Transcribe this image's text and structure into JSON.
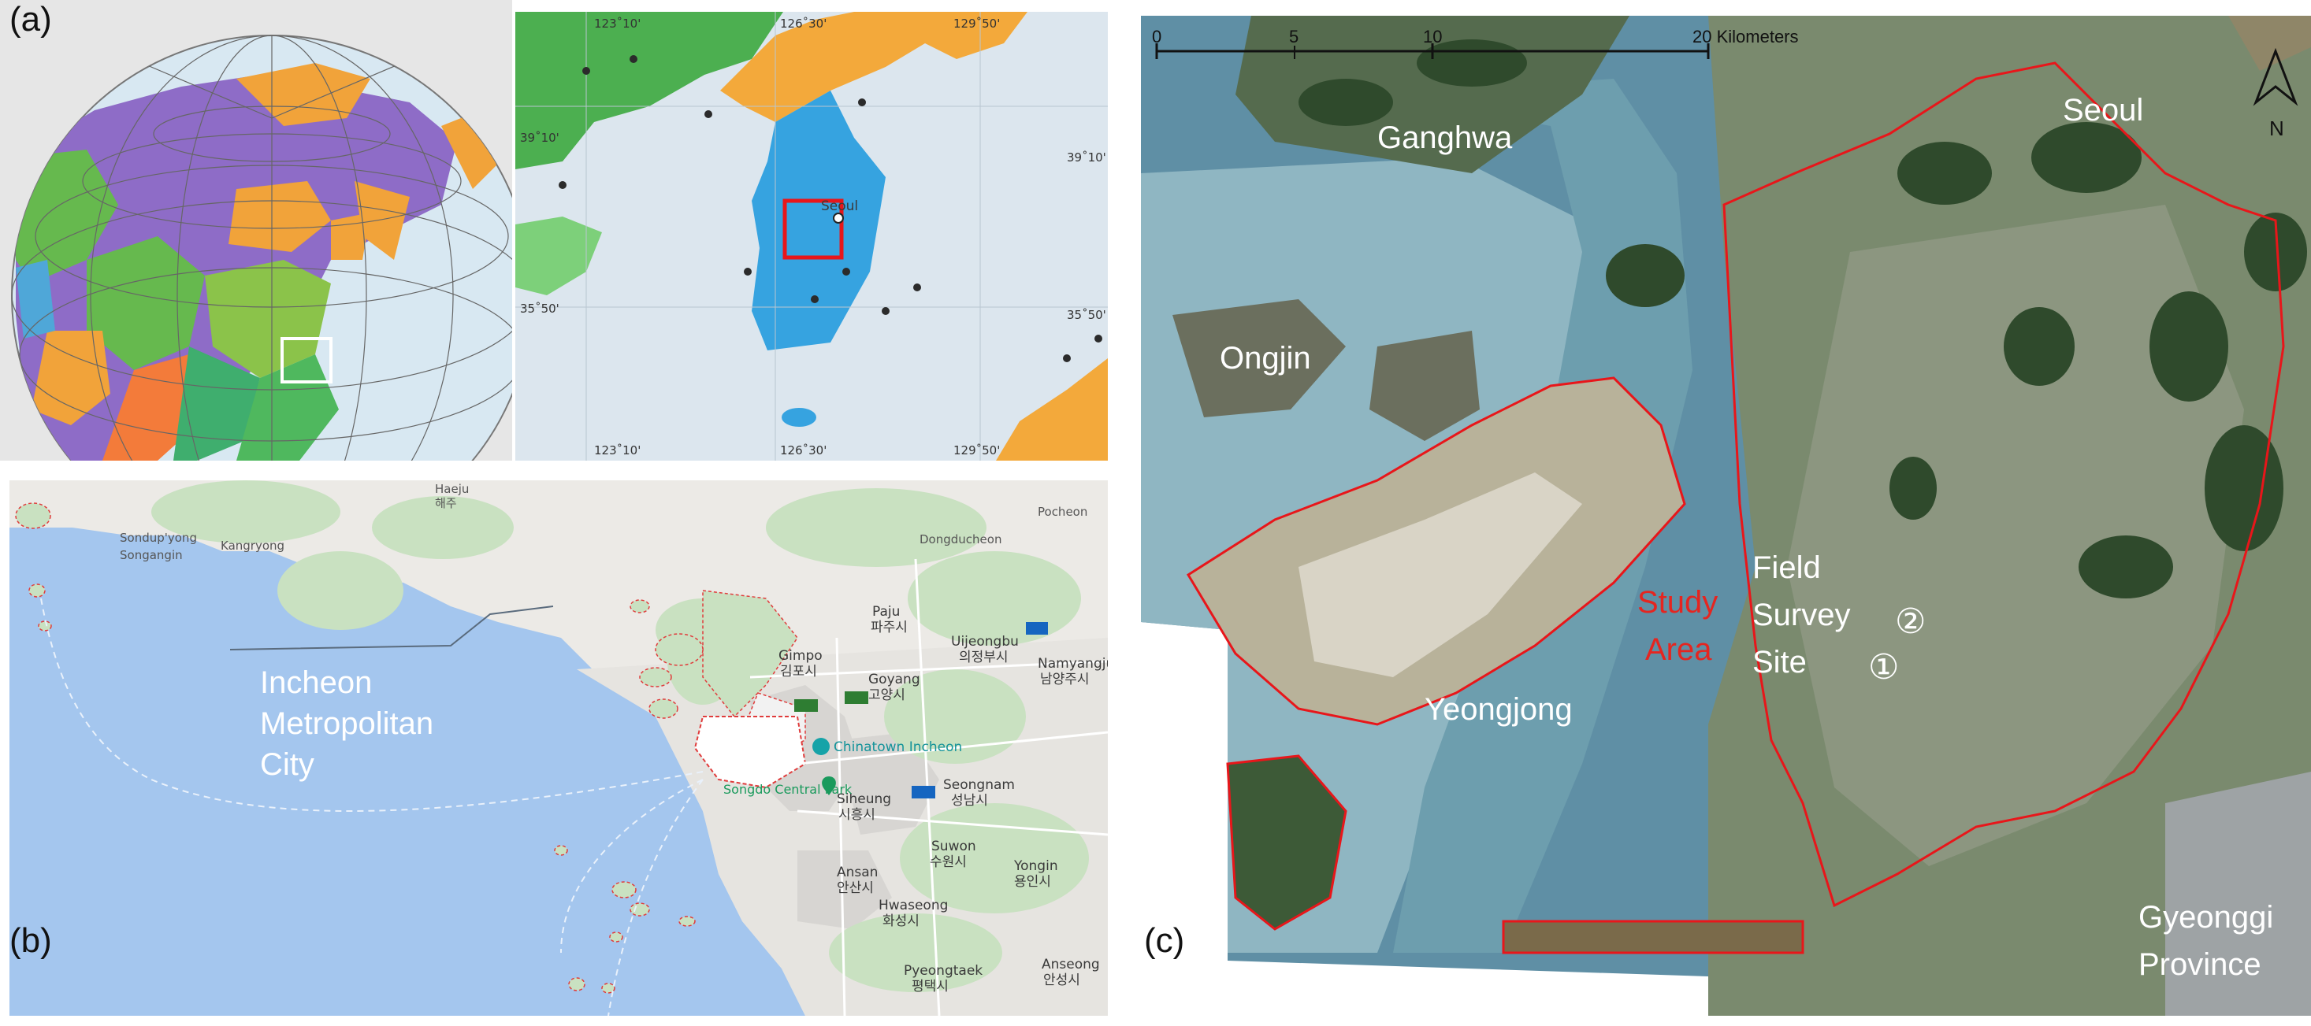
{
  "panels": {
    "a": {
      "label": "(a)"
    },
    "b": {
      "label": "(b)"
    },
    "c": {
      "label": "(c)"
    }
  },
  "panel_a_inset": {
    "top_coords": [
      "123˚10'",
      "126˚30'",
      "129˚50'"
    ],
    "bottom_coords": [
      "123˚10'",
      "126˚30'",
      "129˚50'"
    ],
    "left_coords": [
      "39˚10'",
      "35˚50'"
    ],
    "right_coords": [
      "39˚10'",
      "35˚50'"
    ],
    "city": "Seoul"
  },
  "panel_b": {
    "title_lines": [
      "Incheon",
      "Metropolitan",
      "City"
    ],
    "places": [
      {
        "en": "Paju",
        "ko": "파주시"
      },
      {
        "en": "Gimpo",
        "ko": "김포시"
      },
      {
        "en": "Goyang",
        "ko": "고양시"
      },
      {
        "en": "Uijeongbu",
        "ko": "의정부시"
      },
      {
        "en": "Namyangju",
        "ko": "남양주시"
      },
      {
        "en": "Seongnam",
        "ko": "성남시"
      },
      {
        "en": "Siheung",
        "ko": "시흥시"
      },
      {
        "en": "Suwon",
        "ko": "수원시"
      },
      {
        "en": "Yongin",
        "ko": "용인시"
      },
      {
        "en": "Ansan",
        "ko": "안산시"
      },
      {
        "en": "Hwaseong",
        "ko": "화성시"
      },
      {
        "en": "Pyeongtaek",
        "ko": "평택시"
      },
      {
        "en": "Anseong",
        "ko": "안성시"
      },
      {
        "en": "Sondup'yong",
        "ko": ""
      },
      {
        "en": "Songangin",
        "ko": ""
      },
      {
        "en": "Kangryong",
        "ko": ""
      },
      {
        "en": "Haeju",
        "ko": "해주"
      },
      {
        "en": "Pocheon",
        "ko": ""
      },
      {
        "en": "Dongducheon",
        "ko": ""
      }
    ],
    "pois": [
      "Chinatown Incheon",
      "Songdo Central Park"
    ]
  },
  "panel_c": {
    "scale_labels": [
      "0",
      "5",
      "10",
      "20 Kilometers"
    ],
    "north": "N",
    "regions": [
      "Ganghwa",
      "Seoul",
      "Ongjin",
      "Yeongjong"
    ],
    "study_area": [
      "Study",
      "Area"
    ],
    "field_survey": [
      "Field",
      "Survey",
      "Site"
    ],
    "markers": [
      "②",
      "①"
    ],
    "province": [
      "Gyeonggi",
      "Province"
    ]
  },
  "colors": {
    "boundary_red": "#e8161a",
    "study_area_red": "#e52520",
    "sea_blue": "#9cc3e6",
    "land_gray": "#ececec"
  }
}
